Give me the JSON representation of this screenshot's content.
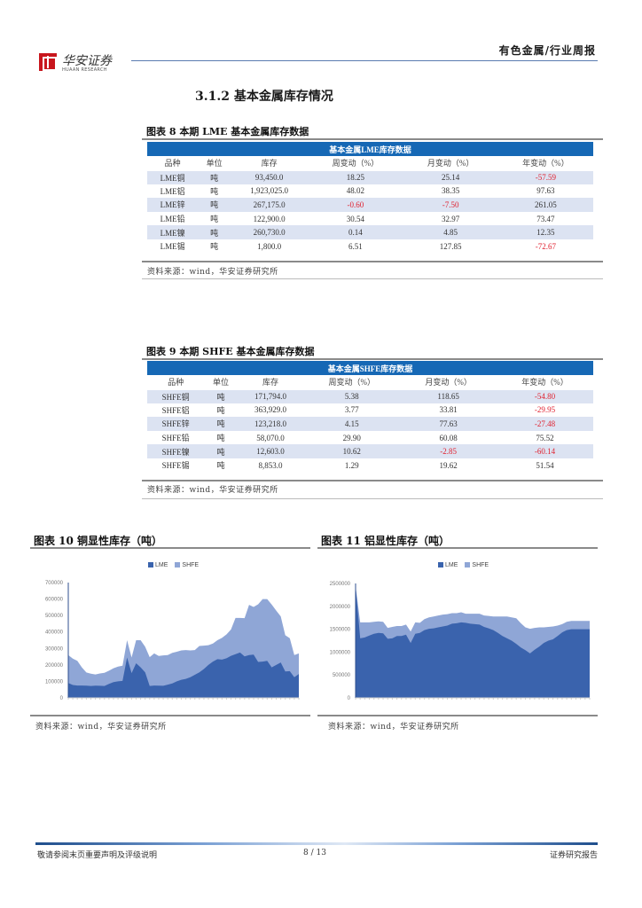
{
  "header": {
    "category": "有色金属/行业周报",
    "logo_cn": "华安证券",
    "logo_en": "HUAAN RESEARCH"
  },
  "section": {
    "title": "3.1.2  基本金属库存情况"
  },
  "table_lme": {
    "fig_title": "图表 8 本期 LME 基本金属库存数据",
    "banner": "基本金属LME库存数据",
    "columns": [
      "品种",
      "单位",
      "库存",
      "周变动（%）",
      "月变动（%）",
      "年变动（%）"
    ],
    "rows": [
      [
        "LME铜",
        "吨",
        "93,450.0",
        "18.25",
        "25.14",
        "-57.59"
      ],
      [
        "LME铝",
        "吨",
        "1,923,025.0",
        "48.02",
        "38.35",
        "97.63"
      ],
      [
        "LME锌",
        "吨",
        "267,175.0",
        "-0.60",
        "-7.50",
        "261.05"
      ],
      [
        "LME铅",
        "吨",
        "122,900.0",
        "30.54",
        "32.97",
        "73.47"
      ],
      [
        "LME镍",
        "吨",
        "260,730.0",
        "0.14",
        "4.85",
        "12.35"
      ],
      [
        "LME锡",
        "吨",
        "1,800.0",
        "6.51",
        "127.85",
        "-72.67"
      ]
    ],
    "source": "资料来源：wind，华安证券研究所"
  },
  "table_shfe": {
    "fig_title": "图表 9 本期 SHFE 基本金属库存数据",
    "banner": "基本金属SHFE库存数据",
    "columns": [
      "品种",
      "单位",
      "库存",
      "周变动（%）",
      "月变动（%）",
      "年变动（%）"
    ],
    "rows": [
      [
        "SHFE铜",
        "吨",
        "171,794.0",
        "5.38",
        "118.65",
        "-54.80"
      ],
      [
        "SHFE铝",
        "吨",
        "363,929.0",
        "3.77",
        "33.81",
        "-29.95"
      ],
      [
        "SHFE锌",
        "吨",
        "123,218.0",
        "4.15",
        "77.63",
        "-27.48"
      ],
      [
        "SHFE铅",
        "吨",
        "58,070.0",
        "29.90",
        "60.08",
        "75.52"
      ],
      [
        "SHFE镍",
        "吨",
        "12,603.0",
        "10.62",
        "-2.85",
        "-60.14"
      ],
      [
        "SHFE锡",
        "吨",
        "8,853.0",
        "1.29",
        "19.62",
        "51.54"
      ]
    ],
    "source": "资料来源：wind，华安证券研究所"
  },
  "colors": {
    "banner": "#1668b5",
    "stripe": "#dce3f2",
    "negative": "#e0212f",
    "lme": "#3a63ad",
    "shfe": "#8fa6d6"
  },
  "chart_data": [
    {
      "type": "area",
      "stacked": true,
      "title": "图表 10 铜显性库存（吨）",
      "legend": [
        "LME",
        "SHFE"
      ],
      "legend_position": "top",
      "ylim": [
        0,
        700000
      ],
      "yticks": [
        "0",
        "100000",
        "200000",
        "300000",
        "400000",
        "500000",
        "600000",
        "700000"
      ],
      "grid": false,
      "x": [
        1,
        2,
        3,
        4,
        5,
        6,
        7,
        8,
        9,
        10,
        11,
        12,
        13,
        14,
        15,
        16,
        17,
        18,
        19,
        20,
        21,
        22,
        23,
        24,
        25,
        26,
        27,
        28,
        29,
        30,
        31,
        32,
        33,
        34,
        35,
        36,
        37,
        38,
        39,
        40,
        41,
        42,
        43,
        44,
        45,
        46,
        47,
        48,
        49,
        50,
        51,
        52
      ],
      "series": [
        {
          "name": "LME",
          "values": [
            90000,
            78000,
            75000,
            75000,
            74000,
            72000,
            74000,
            73000,
            72000,
            85000,
            96000,
            100000,
            103000,
            245000,
            150000,
            210000,
            185000,
            155000,
            72000,
            75000,
            74000,
            73000,
            80000,
            88000,
            100000,
            110000,
            115000,
            125000,
            140000,
            155000,
            175000,
            200000,
            220000,
            235000,
            232000,
            240000,
            255000,
            265000,
            275000,
            252000,
            260000,
            262000,
            218000,
            220000,
            225000,
            185000,
            200000,
            215000,
            160000,
            162000,
            125000,
            145000
          ]
        },
        {
          "name": "SHFE",
          "values": [
            170000,
            160000,
            150000,
            110000,
            80000,
            75000,
            68000,
            75000,
            80000,
            80000,
            84000,
            90000,
            92000,
            105000,
            95000,
            140000,
            165000,
            155000,
            175000,
            195000,
            180000,
            185000,
            180000,
            185000,
            180000,
            178000,
            175000,
            163000,
            150000,
            160000,
            142000,
            120000,
            110000,
            115000,
            132000,
            145000,
            160000,
            220000,
            210000,
            232000,
            305000,
            290000,
            350000,
            380000,
            375000,
            382000,
            330000,
            280000,
            220000,
            200000,
            135000,
            125000
          ]
        }
      ]
    },
    {
      "type": "area",
      "stacked": true,
      "title": "图表 11 铝显性库存（吨）",
      "legend": [
        "LME",
        "SHFE"
      ],
      "legend_position": "top",
      "ylim": [
        0,
        2500000
      ],
      "yticks": [
        "0",
        "500000",
        "1000000",
        "1500000",
        "2000000",
        "2500000"
      ],
      "grid": false,
      "x": [
        1,
        2,
        3,
        4,
        5,
        6,
        7,
        8,
        9,
        10,
        11,
        12,
        13,
        14,
        15,
        16,
        17,
        18,
        19,
        20,
        21,
        22,
        23,
        24,
        25,
        26,
        27,
        28,
        29,
        30,
        31,
        32,
        33,
        34,
        35,
        36,
        37,
        38,
        39,
        40,
        41,
        42,
        43,
        44,
        45,
        46,
        47,
        48,
        49,
        50,
        51,
        52
      ],
      "series": [
        {
          "name": "LME",
          "values": [
            2450000,
            1300000,
            1320000,
            1360000,
            1400000,
            1420000,
            1410000,
            1290000,
            1300000,
            1350000,
            1350000,
            1380000,
            1200000,
            1400000,
            1420000,
            1480000,
            1510000,
            1520000,
            1540000,
            1560000,
            1580000,
            1620000,
            1630000,
            1650000,
            1640000,
            1620000,
            1610000,
            1600000,
            1550000,
            1520000,
            1480000,
            1420000,
            1350000,
            1300000,
            1250000,
            1180000,
            1100000,
            1040000,
            970000,
            1050000,
            1120000,
            1200000,
            1250000,
            1280000,
            1350000,
            1430000,
            1480000,
            1500000,
            1500000,
            1500000,
            1500000,
            1500000
          ]
        },
        {
          "name": "SHFE",
          "values": [
            0,
            350000,
            330000,
            290000,
            260000,
            250000,
            250000,
            240000,
            250000,
            220000,
            220000,
            220000,
            250000,
            250000,
            220000,
            240000,
            250000,
            260000,
            260000,
            260000,
            250000,
            230000,
            220000,
            220000,
            200000,
            220000,
            230000,
            240000,
            250000,
            270000,
            300000,
            360000,
            430000,
            480000,
            510000,
            560000,
            530000,
            500000,
            540000,
            480000,
            420000,
            340000,
            300000,
            280000,
            230000,
            180000,
            180000,
            180000,
            180000,
            180000,
            180000,
            180000
          ]
        }
      ]
    }
  ],
  "chart_copper": {
    "fig_title": "图表 10 铜显性库存（吨）",
    "legend_lme": "LME",
    "legend_shfe": "SHFE",
    "source": "资料来源：wind，华安证券研究所"
  },
  "chart_aluminum": {
    "fig_title": "图表 11 铝显性库存（吨）",
    "legend_lme": "LME",
    "legend_shfe": "SHFE",
    "source": "资料来源：wind，华安证券研究所"
  },
  "footer": {
    "disclaimer": "敬请参阅末页重要声明及评级说明",
    "page": "8 / 13",
    "doc_type": "证券研究报告"
  }
}
